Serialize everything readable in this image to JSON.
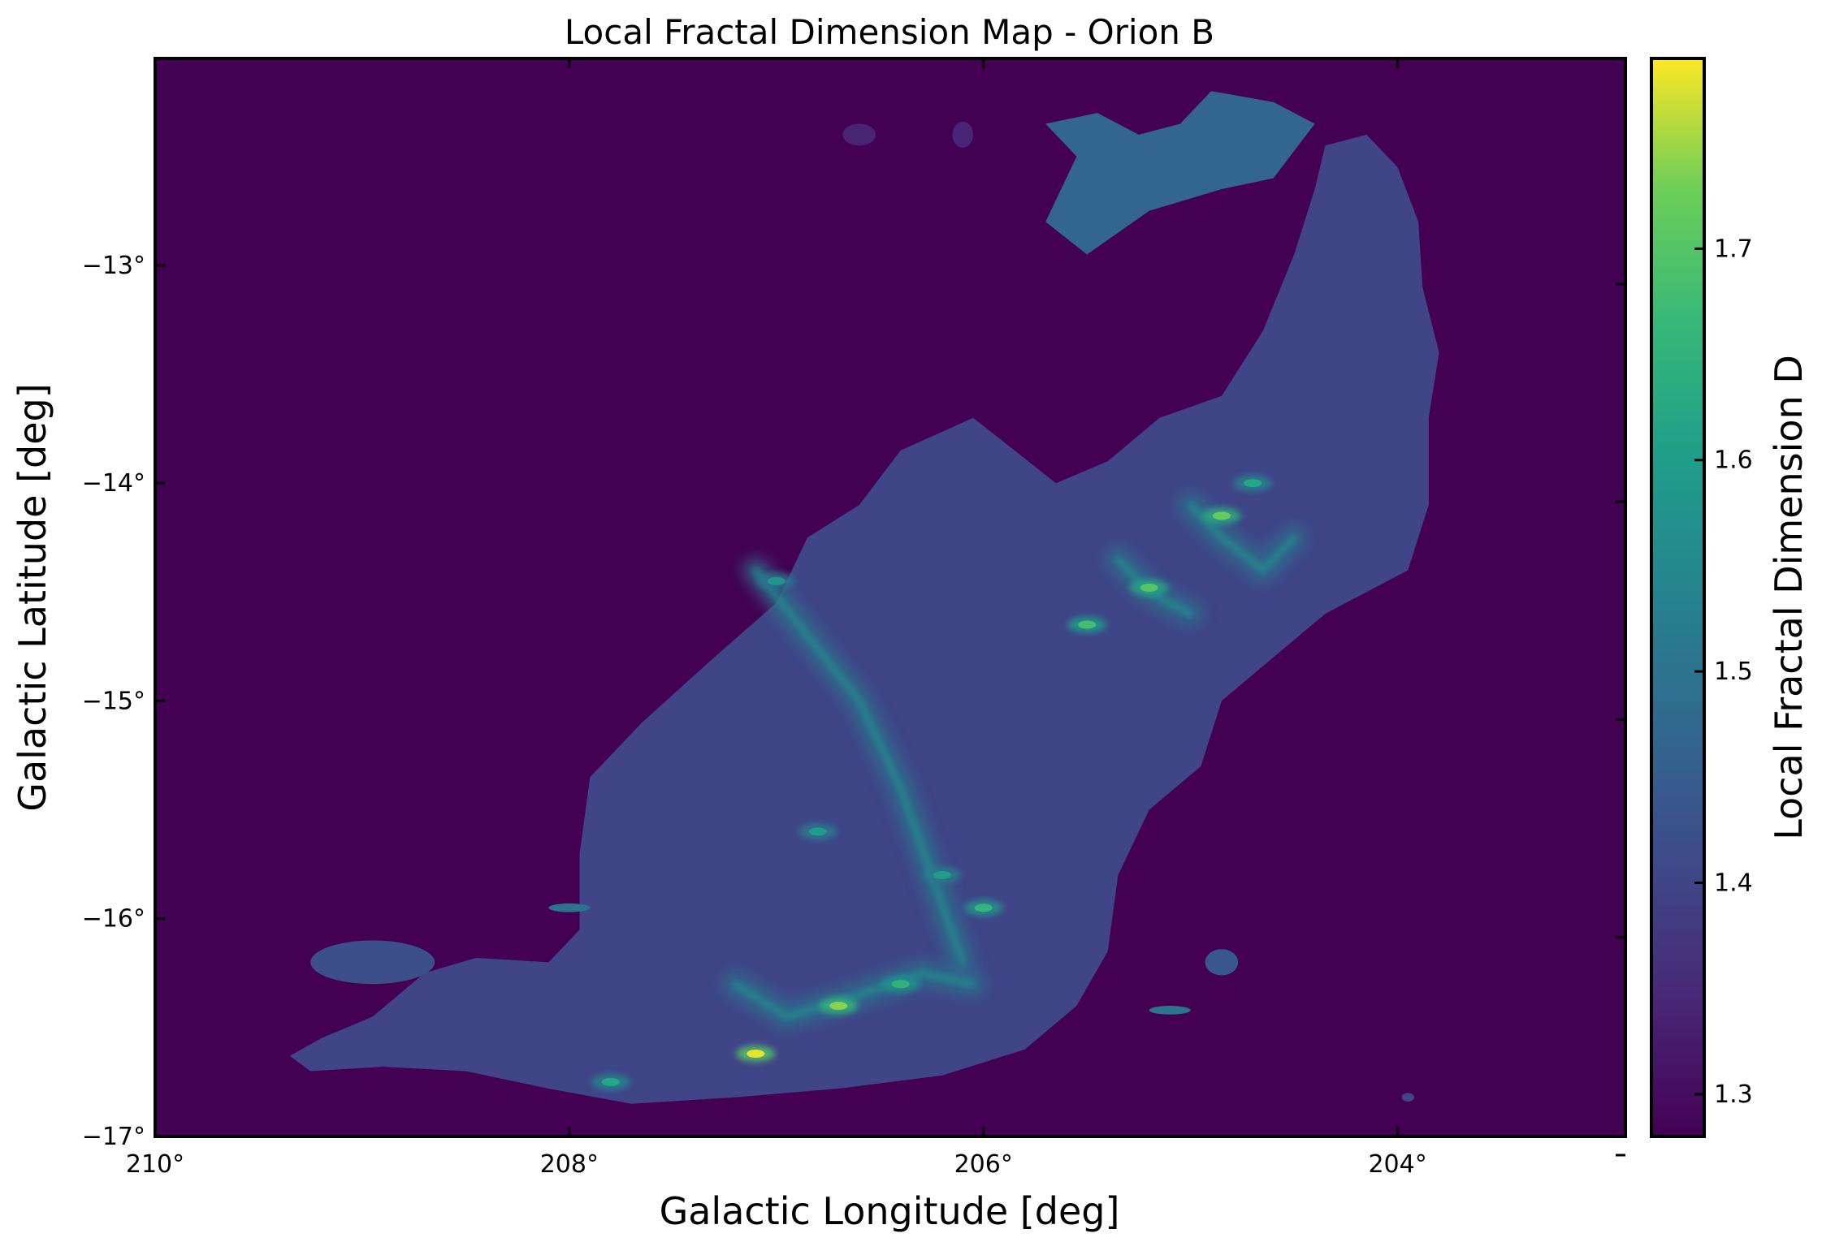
{
  "chart_data": {
    "type": "heatmap",
    "title": "Local Fractal Dimension Map - Orion B",
    "xlabel": "Galactic Longitude [deg]",
    "ylabel": "Galactic Latitude [deg]",
    "colorbar_label": "Local Fractal Dimension D",
    "colormap": "viridis",
    "background_color": "#440154",
    "x_range": [
      210.0,
      202.9
    ],
    "y_range": [
      -17.0,
      -12.05
    ],
    "x_ticks": [
      {
        "value": 210,
        "label": "210°"
      },
      {
        "value": 208,
        "label": "208°"
      },
      {
        "value": 206,
        "label": "206°"
      },
      {
        "value": 204,
        "label": "204°"
      }
    ],
    "y_ticks": [
      {
        "value": -13,
        "label": "−13°"
      },
      {
        "value": -14,
        "label": "−14°"
      },
      {
        "value": -15,
        "label": "−15°"
      },
      {
        "value": -16,
        "label": "−16°"
      },
      {
        "value": -17,
        "label": "−17°"
      }
    ],
    "colorbar_range": [
      1.28,
      1.79
    ],
    "colorbar_ticks": [
      {
        "value": 1.3,
        "label": "1.3"
      },
      {
        "value": 1.4,
        "label": "1.4"
      },
      {
        "value": 1.5,
        "label": "1.5"
      },
      {
        "value": 1.6,
        "label": "1.6"
      },
      {
        "value": 1.7,
        "label": "1.7"
      }
    ],
    "grid": false,
    "cloud_fill_level": 1.4,
    "northern_extension_level": 1.47,
    "cloud_outline_lonlat": [
      [
        209.35,
        -16.63
      ],
      [
        209.2,
        -16.55
      ],
      [
        208.95,
        -16.45
      ],
      [
        208.7,
        -16.25
      ],
      [
        208.45,
        -16.18
      ],
      [
        208.1,
        -16.2
      ],
      [
        207.95,
        -16.05
      ],
      [
        207.95,
        -15.7
      ],
      [
        207.9,
        -15.35
      ],
      [
        207.65,
        -15.1
      ],
      [
        207.3,
        -14.8
      ],
      [
        207.0,
        -14.55
      ],
      [
        206.85,
        -14.25
      ],
      [
        206.6,
        -14.1
      ],
      [
        206.4,
        -13.85
      ],
      [
        206.05,
        -13.7
      ],
      [
        205.85,
        -13.85
      ],
      [
        205.65,
        -14.0
      ],
      [
        205.4,
        -13.9
      ],
      [
        205.15,
        -13.7
      ],
      [
        204.85,
        -13.6
      ],
      [
        204.65,
        -13.3
      ],
      [
        204.5,
        -12.95
      ],
      [
        204.4,
        -12.65
      ],
      [
        204.35,
        -12.45
      ],
      [
        204.15,
        -12.4
      ],
      [
        204.0,
        -12.55
      ],
      [
        203.9,
        -12.8
      ],
      [
        203.88,
        -13.1
      ],
      [
        203.8,
        -13.4
      ],
      [
        203.85,
        -13.7
      ],
      [
        203.85,
        -14.1
      ],
      [
        203.95,
        -14.4
      ],
      [
        204.35,
        -14.6
      ],
      [
        204.6,
        -14.8
      ],
      [
        204.85,
        -15.0
      ],
      [
        204.95,
        -15.3
      ],
      [
        205.2,
        -15.5
      ],
      [
        205.35,
        -15.8
      ],
      [
        205.4,
        -16.15
      ],
      [
        205.55,
        -16.4
      ],
      [
        205.8,
        -16.6
      ],
      [
        206.2,
        -16.72
      ],
      [
        206.7,
        -16.78
      ],
      [
        207.2,
        -16.82
      ],
      [
        207.7,
        -16.85
      ],
      [
        208.1,
        -16.78
      ],
      [
        208.5,
        -16.7
      ],
      [
        208.9,
        -16.68
      ],
      [
        209.25,
        -16.7
      ]
    ],
    "northern_extension_lonlat": [
      [
        205.7,
        -12.35
      ],
      [
        205.45,
        -12.3
      ],
      [
        205.25,
        -12.4
      ],
      [
        205.05,
        -12.35
      ],
      [
        204.9,
        -12.2
      ],
      [
        204.6,
        -12.25
      ],
      [
        204.4,
        -12.35
      ],
      [
        204.6,
        -12.6
      ],
      [
        204.85,
        -12.65
      ],
      [
        205.2,
        -12.75
      ],
      [
        205.5,
        -12.95
      ],
      [
        205.7,
        -12.8
      ],
      [
        205.55,
        -12.5
      ]
    ],
    "filament_ridges_lonlat": [
      [
        [
          207.1,
          -14.4
        ],
        [
          206.85,
          -14.7
        ],
        [
          206.6,
          -15.0
        ],
        [
          206.4,
          -15.4
        ],
        [
          206.25,
          -15.8
        ],
        [
          206.1,
          -16.2
        ]
      ],
      [
        [
          205.0,
          -14.1
        ],
        [
          204.85,
          -14.25
        ],
        [
          204.65,
          -14.4
        ],
        [
          204.5,
          -14.25
        ]
      ],
      [
        [
          205.35,
          -14.35
        ],
        [
          205.2,
          -14.5
        ],
        [
          205.0,
          -14.6
        ]
      ],
      [
        [
          207.2,
          -16.3
        ],
        [
          206.95,
          -16.45
        ],
        [
          206.6,
          -16.35
        ],
        [
          206.3,
          -16.25
        ],
        [
          206.05,
          -16.3
        ]
      ]
    ],
    "peak_knots": [
      {
        "lon": 206.7,
        "lat": -16.4,
        "value": 1.74
      },
      {
        "lon": 207.1,
        "lat": -16.62,
        "value": 1.78
      },
      {
        "lon": 204.85,
        "lat": -14.15,
        "value": 1.72
      },
      {
        "lon": 205.2,
        "lat": -14.48,
        "value": 1.7
      },
      {
        "lon": 205.5,
        "lat": -14.65,
        "value": 1.68
      },
      {
        "lon": 206.0,
        "lat": -15.95,
        "value": 1.66
      },
      {
        "lon": 206.4,
        "lat": -16.3,
        "value": 1.65
      },
      {
        "lon": 206.8,
        "lat": -15.6,
        "value": 1.6
      },
      {
        "lon": 207.0,
        "lat": -14.45,
        "value": 1.58
      },
      {
        "lon": 204.7,
        "lat": -14.0,
        "value": 1.62
      },
      {
        "lon": 207.8,
        "lat": -16.75,
        "value": 1.62
      },
      {
        "lon": 206.2,
        "lat": -15.8,
        "value": 1.6
      }
    ],
    "isolated_patches": [
      {
        "lon": 208.95,
        "lat": -16.2,
        "rlon": 0.3,
        "rlat": 0.1,
        "value": 1.42
      },
      {
        "lon": 204.85,
        "lat": -16.2,
        "rlon": 0.08,
        "rlat": 0.06,
        "value": 1.44
      },
      {
        "lon": 205.1,
        "lat": -16.42,
        "rlon": 0.1,
        "rlat": 0.02,
        "value": 1.5
      },
      {
        "lon": 206.1,
        "lat": -12.4,
        "rlon": 0.05,
        "rlat": 0.06,
        "value": 1.34
      },
      {
        "lon": 206.6,
        "lat": -12.4,
        "rlon": 0.08,
        "rlat": 0.05,
        "value": 1.34
      },
      {
        "lon": 203.95,
        "lat": -16.82,
        "rlon": 0.03,
        "rlat": 0.02,
        "value": 1.4
      },
      {
        "lon": 208.0,
        "lat": -15.95,
        "rlon": 0.1,
        "rlat": 0.02,
        "value": 1.5
      }
    ]
  }
}
